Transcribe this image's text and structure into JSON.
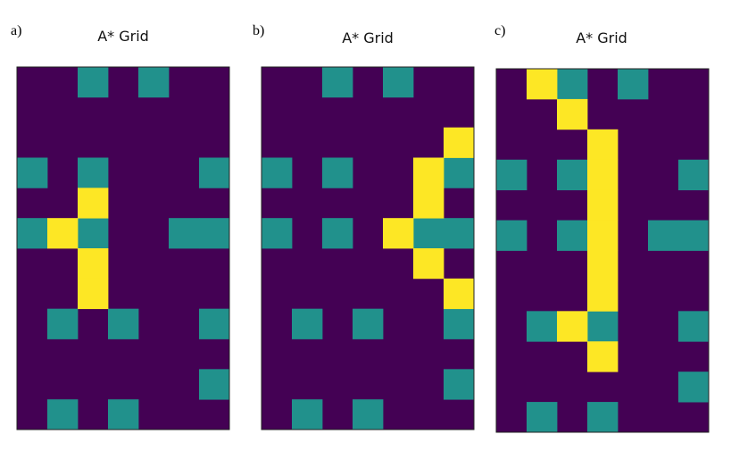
{
  "colors": {
    "empty": "#440154",
    "obstacle": "#21918c",
    "path": "#fde725",
    "border": "#222222"
  },
  "panels": [
    {
      "label": "a)",
      "title": "A* Grid",
      "rows": 12,
      "cols": 7,
      "obstacles": [
        [
          0,
          2
        ],
        [
          0,
          4
        ],
        [
          3,
          0
        ],
        [
          3,
          2
        ],
        [
          3,
          6
        ],
        [
          5,
          0
        ],
        [
          5,
          2
        ],
        [
          5,
          5
        ],
        [
          5,
          6
        ],
        [
          8,
          1
        ],
        [
          8,
          3
        ],
        [
          8,
          6
        ],
        [
          10,
          6
        ],
        [
          11,
          1
        ],
        [
          11,
          3
        ]
      ],
      "path": [
        [
          4,
          2
        ],
        [
          5,
          1
        ],
        [
          6,
          2
        ],
        [
          7,
          2
        ]
      ]
    },
    {
      "label": "b)",
      "title": "A* Grid",
      "rows": 12,
      "cols": 7,
      "obstacles": [
        [
          0,
          2
        ],
        [
          0,
          4
        ],
        [
          3,
          0
        ],
        [
          3,
          2
        ],
        [
          3,
          6
        ],
        [
          5,
          0
        ],
        [
          5,
          2
        ],
        [
          5,
          5
        ],
        [
          5,
          6
        ],
        [
          8,
          1
        ],
        [
          8,
          3
        ],
        [
          8,
          6
        ],
        [
          10,
          6
        ],
        [
          11,
          1
        ],
        [
          11,
          3
        ]
      ],
      "path": [
        [
          2,
          6
        ],
        [
          3,
          5
        ],
        [
          4,
          5
        ],
        [
          5,
          4
        ],
        [
          6,
          5
        ],
        [
          7,
          6
        ]
      ]
    },
    {
      "label": "c)",
      "title": "A* Grid",
      "rows": 12,
      "cols": 7,
      "obstacles": [
        [
          0,
          2
        ],
        [
          0,
          4
        ],
        [
          3,
          0
        ],
        [
          3,
          2
        ],
        [
          3,
          6
        ],
        [
          5,
          0
        ],
        [
          5,
          2
        ],
        [
          5,
          5
        ],
        [
          5,
          6
        ],
        [
          8,
          1
        ],
        [
          8,
          3
        ],
        [
          8,
          6
        ],
        [
          10,
          6
        ],
        [
          11,
          1
        ],
        [
          11,
          3
        ]
      ],
      "path": [
        [
          0,
          1
        ],
        [
          1,
          2
        ],
        [
          2,
          3
        ],
        [
          3,
          3
        ],
        [
          4,
          3
        ],
        [
          5,
          3
        ],
        [
          6,
          3
        ],
        [
          7,
          3
        ],
        [
          8,
          2
        ],
        [
          9,
          3
        ]
      ]
    }
  ]
}
